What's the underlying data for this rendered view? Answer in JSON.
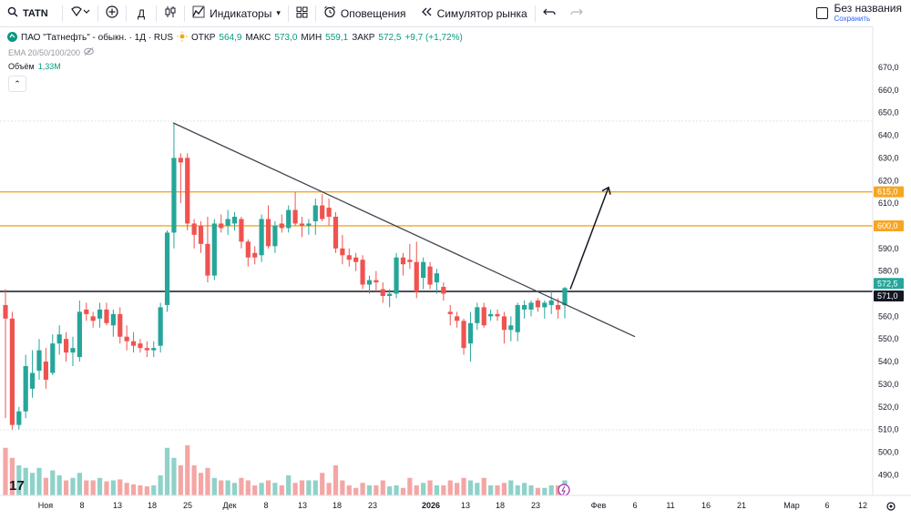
{
  "toolbar": {
    "symbol": "TATN",
    "interval": "Д",
    "indicators": "Индикаторы",
    "alerts": "Оповещения",
    "replay": "Симулятор рынка",
    "layout_name": "Без названия",
    "layout_status": "Сохранить"
  },
  "legend": {
    "title": "ПАО \"Татнефть\" - обыкн. · 1Д · RUS",
    "open_label": "ОТКР",
    "open": "564,9",
    "high_label": "МАКС",
    "high": "573,0",
    "low_label": "МИН",
    "low": "559,1",
    "close_label": "ЗАКР",
    "close": "572,5",
    "change": "+9,7 (+1,72%)",
    "ema": "EMA 20/50/100/200",
    "volume_label": "Объём",
    "volume": "1,33M",
    "currency": "RUB"
  },
  "price_axis": {
    "ticks": [
      "670,0",
      "660,0",
      "650,0",
      "640,0",
      "630,0",
      "620,0",
      "610,0",
      "600,0",
      "590,0",
      "580,0",
      "570,0",
      "560,0",
      "550,0",
      "540,0",
      "530,0",
      "520,0",
      "510,0",
      "500,0",
      "490,0"
    ],
    "badges": [
      "615,0",
      "600,0",
      "572,5",
      "571,0"
    ]
  },
  "time_axis": [
    "Ноя",
    "8",
    "13",
    "18",
    "25",
    "Дек",
    "8",
    "13",
    "18",
    "23",
    "2026",
    "13",
    "18",
    "23",
    "Фев",
    "6",
    "11",
    "16",
    "21",
    "Мар",
    "6",
    "12"
  ],
  "colors": {
    "up": "#26a69a",
    "down": "#ef5350",
    "up_vol": "#8ed2c9",
    "down_vol": "#f4a6a4",
    "orange": "#f5a623",
    "black": "#131722"
  },
  "chart_data": {
    "type": "candlestick",
    "y_unit": "RUB",
    "horizontal_levels": [
      615.0,
      600.0,
      571.0
    ],
    "trendline_price_points": [
      645.5,
      551
    ],
    "arrow_target_price": 617,
    "candles": [
      {
        "o": 565,
        "h": 572,
        "l": 515,
        "c": 559
      },
      {
        "o": 559,
        "h": 562,
        "l": 510,
        "c": 512
      },
      {
        "o": 512,
        "h": 520,
        "l": 510,
        "c": 518
      },
      {
        "o": 518,
        "h": 543,
        "l": 515,
        "c": 538
      },
      {
        "o": 528,
        "h": 545,
        "l": 524,
        "c": 535
      },
      {
        "o": 536,
        "h": 550,
        "l": 532,
        "c": 545
      },
      {
        "o": 540,
        "h": 546,
        "l": 528,
        "c": 532
      },
      {
        "o": 535,
        "h": 552,
        "l": 534,
        "c": 548
      },
      {
        "o": 548,
        "h": 556,
        "l": 543,
        "c": 552
      },
      {
        "o": 550,
        "h": 553,
        "l": 540,
        "c": 544
      },
      {
        "o": 544,
        "h": 551,
        "l": 538,
        "c": 546
      },
      {
        "o": 542,
        "h": 567,
        "l": 540,
        "c": 562
      },
      {
        "o": 563,
        "h": 566,
        "l": 558,
        "c": 561
      },
      {
        "o": 560,
        "h": 562,
        "l": 555,
        "c": 558
      },
      {
        "o": 559,
        "h": 566,
        "l": 555,
        "c": 563
      },
      {
        "o": 563,
        "h": 566,
        "l": 556,
        "c": 557
      },
      {
        "o": 556,
        "h": 563,
        "l": 551,
        "c": 561
      },
      {
        "o": 561,
        "h": 564,
        "l": 548,
        "c": 551
      },
      {
        "o": 551,
        "h": 556,
        "l": 545,
        "c": 549
      },
      {
        "o": 549,
        "h": 553,
        "l": 544,
        "c": 547
      },
      {
        "o": 548,
        "h": 550,
        "l": 544,
        "c": 546
      },
      {
        "o": 546,
        "h": 549,
        "l": 542,
        "c": 545
      },
      {
        "o": 545,
        "h": 549,
        "l": 542,
        "c": 546
      },
      {
        "o": 547,
        "h": 566,
        "l": 544,
        "c": 564
      },
      {
        "o": 565,
        "h": 598,
        "l": 562,
        "c": 597
      },
      {
        "o": 597,
        "h": 645,
        "l": 590,
        "c": 630
      },
      {
        "o": 630,
        "h": 632,
        "l": 610,
        "c": 628
      },
      {
        "o": 630,
        "h": 632,
        "l": 598,
        "c": 601
      },
      {
        "o": 601,
        "h": 603,
        "l": 590,
        "c": 596
      },
      {
        "o": 600,
        "h": 602,
        "l": 588,
        "c": 592
      },
      {
        "o": 592,
        "h": 604,
        "l": 575,
        "c": 578
      },
      {
        "o": 578,
        "h": 603,
        "l": 576,
        "c": 601
      },
      {
        "o": 601,
        "h": 605,
        "l": 597,
        "c": 599
      },
      {
        "o": 600,
        "h": 607,
        "l": 596,
        "c": 603
      },
      {
        "o": 601,
        "h": 606,
        "l": 598,
        "c": 604
      },
      {
        "o": 603,
        "h": 604,
        "l": 590,
        "c": 593
      },
      {
        "o": 593,
        "h": 594,
        "l": 582,
        "c": 586
      },
      {
        "o": 588,
        "h": 591,
        "l": 583,
        "c": 586
      },
      {
        "o": 587,
        "h": 605,
        "l": 584,
        "c": 603
      },
      {
        "o": 603,
        "h": 609,
        "l": 590,
        "c": 591
      },
      {
        "o": 591,
        "h": 602,
        "l": 588,
        "c": 600
      },
      {
        "o": 601,
        "h": 605,
        "l": 597,
        "c": 599
      },
      {
        "o": 599,
        "h": 609,
        "l": 597,
        "c": 607
      },
      {
        "o": 607,
        "h": 615,
        "l": 600,
        "c": 601
      },
      {
        "o": 601,
        "h": 604,
        "l": 595,
        "c": 600
      },
      {
        "o": 600,
        "h": 603,
        "l": 596,
        "c": 601
      },
      {
        "o": 602,
        "h": 612,
        "l": 596,
        "c": 609
      },
      {
        "o": 609,
        "h": 614,
        "l": 602,
        "c": 603
      },
      {
        "o": 608,
        "h": 612,
        "l": 600,
        "c": 604
      },
      {
        "o": 604,
        "h": 606,
        "l": 588,
        "c": 590
      },
      {
        "o": 590,
        "h": 596,
        "l": 583,
        "c": 587
      },
      {
        "o": 587,
        "h": 590,
        "l": 582,
        "c": 585
      },
      {
        "o": 586,
        "h": 588,
        "l": 580,
        "c": 584
      },
      {
        "o": 585,
        "h": 587,
        "l": 572,
        "c": 574
      },
      {
        "o": 574,
        "h": 578,
        "l": 570,
        "c": 576
      },
      {
        "o": 576,
        "h": 580,
        "l": 571,
        "c": 575
      },
      {
        "o": 572,
        "h": 575,
        "l": 566,
        "c": 569
      },
      {
        "o": 569,
        "h": 572,
        "l": 564,
        "c": 570
      },
      {
        "o": 570,
        "h": 588,
        "l": 568,
        "c": 586
      },
      {
        "o": 586,
        "h": 588,
        "l": 578,
        "c": 583
      },
      {
        "o": 585,
        "h": 592,
        "l": 581,
        "c": 584
      },
      {
        "o": 584,
        "h": 593,
        "l": 568,
        "c": 571
      },
      {
        "o": 577,
        "h": 586,
        "l": 572,
        "c": 584
      },
      {
        "o": 582,
        "h": 584,
        "l": 572,
        "c": 574
      },
      {
        "o": 575,
        "h": 581,
        "l": 570,
        "c": 579
      },
      {
        "o": 573,
        "h": 575,
        "l": 567,
        "c": 570
      },
      {
        "o": 562,
        "h": 565,
        "l": 556,
        "c": 561
      },
      {
        "o": 560,
        "h": 562,
        "l": 555,
        "c": 558
      },
      {
        "o": 558,
        "h": 559,
        "l": 543,
        "c": 546
      },
      {
        "o": 548,
        "h": 562,
        "l": 540,
        "c": 557
      },
      {
        "o": 557,
        "h": 566,
        "l": 554,
        "c": 564
      },
      {
        "o": 564,
        "h": 566,
        "l": 555,
        "c": 556
      },
      {
        "o": 560,
        "h": 563,
        "l": 558,
        "c": 561
      },
      {
        "o": 561,
        "h": 563,
        "l": 558,
        "c": 560
      },
      {
        "o": 560,
        "h": 562,
        "l": 548,
        "c": 554
      },
      {
        "o": 554,
        "h": 560,
        "l": 549,
        "c": 556
      },
      {
        "o": 553,
        "h": 566,
        "l": 549,
        "c": 565
      },
      {
        "o": 563,
        "h": 567,
        "l": 559,
        "c": 565
      },
      {
        "o": 563,
        "h": 567,
        "l": 560,
        "c": 566
      },
      {
        "o": 567,
        "h": 568,
        "l": 562,
        "c": 564
      },
      {
        "o": 564,
        "h": 567,
        "l": 559,
        "c": 566
      },
      {
        "o": 565,
        "h": 571,
        "l": 561,
        "c": 567
      },
      {
        "o": 565,
        "h": 568,
        "l": 559,
        "c": 563
      },
      {
        "o": 564.9,
        "h": 573,
        "l": 559.1,
        "c": 572.5
      }
    ],
    "volumes": [
      0.95,
      0.75,
      0.6,
      0.55,
      0.45,
      0.55,
      0.35,
      0.5,
      0.4,
      0.3,
      0.35,
      0.45,
      0.3,
      0.3,
      0.35,
      0.28,
      0.3,
      0.32,
      0.25,
      0.22,
      0.2,
      0.18,
      0.2,
      0.4,
      0.95,
      0.75,
      0.6,
      1.0,
      0.6,
      0.45,
      0.55,
      0.35,
      0.3,
      0.3,
      0.25,
      0.35,
      0.3,
      0.2,
      0.25,
      0.3,
      0.25,
      0.2,
      0.4,
      0.25,
      0.3,
      0.3,
      0.3,
      0.45,
      0.25,
      0.6,
      0.3,
      0.2,
      0.15,
      0.25,
      0.2,
      0.2,
      0.3,
      0.18,
      0.2,
      0.15,
      0.35,
      0.2,
      0.25,
      0.3,
      0.2,
      0.2,
      0.3,
      0.25,
      0.35,
      0.3,
      0.25,
      0.35,
      0.2,
      0.2,
      0.25,
      0.3,
      0.2,
      0.25,
      0.2,
      0.15,
      0.15,
      0.2,
      0.2,
      0.3
    ]
  }
}
